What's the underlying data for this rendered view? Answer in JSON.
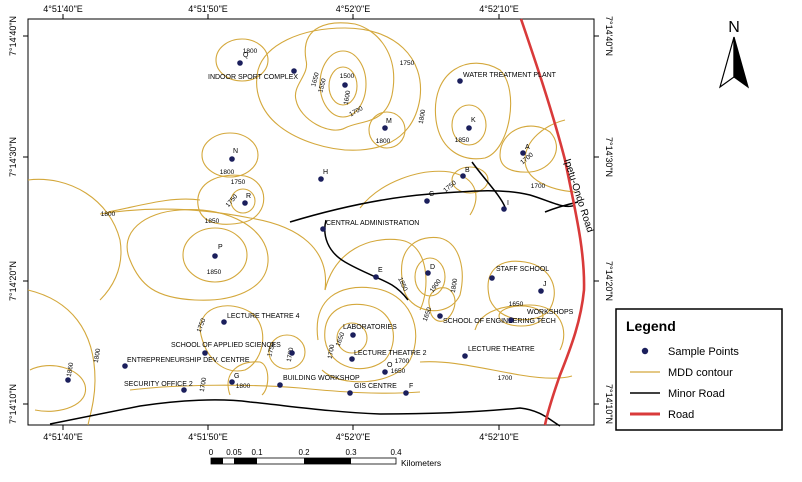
{
  "colors": {
    "contour": "#d4a83c",
    "road": "#d93a3a",
    "minor_road": "#000000",
    "point": "#1b1f5c"
  },
  "axes": {
    "top_ticks": [
      "4°51'40\"E",
      "4°51'50\"E",
      "4°52'0\"E",
      "4°52'10\"E"
    ],
    "bottom_ticks": [
      "4°51'40\"E",
      "4°51'50\"E",
      "4°52'0\"E",
      "4°52'10\"E"
    ],
    "left_ticks": [
      "7°14'40\"N",
      "7°14'30\"N",
      "7°14'20\"N",
      "7°14'10\"N"
    ],
    "right_ticks": [
      "7°14'40\"N",
      "7°14'30\"N",
      "7°14'20\"N",
      "7°14'10\"N"
    ]
  },
  "north_arrow": {
    "label": "N",
    "icon": "north-arrow-icon"
  },
  "road_name": "Ipetu-Ondo Road",
  "sample_points": [
    {
      "id": "Q",
      "label": "Q"
    },
    {
      "id": "indoor",
      "label": "INDOOR SPORT COMPLEX"
    },
    {
      "id": "1500",
      "label": ""
    },
    {
      "id": "water",
      "label": "WATER TREATMENT PLANT"
    },
    {
      "id": "M",
      "label": "M"
    },
    {
      "id": "K",
      "label": "K"
    },
    {
      "id": "A",
      "label": "A"
    },
    {
      "id": "N",
      "label": "N"
    },
    {
      "id": "H",
      "label": "H"
    },
    {
      "id": "B",
      "label": "B"
    },
    {
      "id": "R",
      "label": "R"
    },
    {
      "id": "C",
      "label": "C"
    },
    {
      "id": "I",
      "label": "I"
    },
    {
      "id": "admin",
      "label": "CENTRAL ADMINISTRATION"
    },
    {
      "id": "P",
      "label": "P"
    },
    {
      "id": "E",
      "label": "E"
    },
    {
      "id": "D",
      "label": "D"
    },
    {
      "id": "staff",
      "label": "STAFF SCHOOL"
    },
    {
      "id": "J",
      "label": "J"
    },
    {
      "id": "lt4",
      "label": "LECTURE THEATRE 4"
    },
    {
      "id": "labs",
      "label": "LABORATORIES"
    },
    {
      "id": "engtech",
      "label": "SCHOOL OF ENGINEERING TECH"
    },
    {
      "id": "workshops",
      "label": "WORKSHOPS"
    },
    {
      "id": "applied",
      "label": "SCHOOL OF APPLIED SCIENCES"
    },
    {
      "id": "blank1",
      "label": ""
    },
    {
      "id": "lt2",
      "label": "LECTURE THEATRE 2"
    },
    {
      "id": "lt",
      "label": "LECTURE THEATRE"
    },
    {
      "id": "entre",
      "label": "ENTREPRENEURSHIP DEV. CENTRE"
    },
    {
      "id": "O",
      "label": "O"
    },
    {
      "id": "far-left",
      "label": ""
    },
    {
      "id": "sec2",
      "label": "SECURITY OFFICE 2"
    },
    {
      "id": "G",
      "label": "G"
    },
    {
      "id": "bw",
      "label": "BUILDING WORKSHOP"
    },
    {
      "id": "gis",
      "label": "GIS CENTRE"
    },
    {
      "id": "F",
      "label": "F"
    }
  ],
  "contour_labels": [
    "1800",
    "1650",
    "1500",
    "1550",
    "1600",
    "1700",
    "1750",
    "1800",
    "1850",
    "1700",
    "1800",
    "1750",
    "1750",
    "1700",
    "1750",
    "1800",
    "1800",
    "1850",
    "1850",
    "1900",
    "1800",
    "1850",
    "1650",
    "1750",
    "1700",
    "1650",
    "1650",
    "1700",
    "1700",
    "1750",
    "1650",
    "1700",
    "1800",
    "1860",
    "1700",
    "1800"
  ],
  "scale_bar": {
    "ticks": [
      "0",
      "0.05",
      "0.1",
      "0.2",
      "0.3",
      "0.4"
    ],
    "unit": "Kilometers"
  },
  "legend": {
    "title": "Legend",
    "items": [
      {
        "label": "Sample Points",
        "icon": "sample-point-icon"
      },
      {
        "label": "MDD contour",
        "icon": "contour-line-icon"
      },
      {
        "label": "Minor Road",
        "icon": "minor-road-line-icon"
      },
      {
        "label": "Road",
        "icon": "road-line-icon"
      }
    ]
  }
}
